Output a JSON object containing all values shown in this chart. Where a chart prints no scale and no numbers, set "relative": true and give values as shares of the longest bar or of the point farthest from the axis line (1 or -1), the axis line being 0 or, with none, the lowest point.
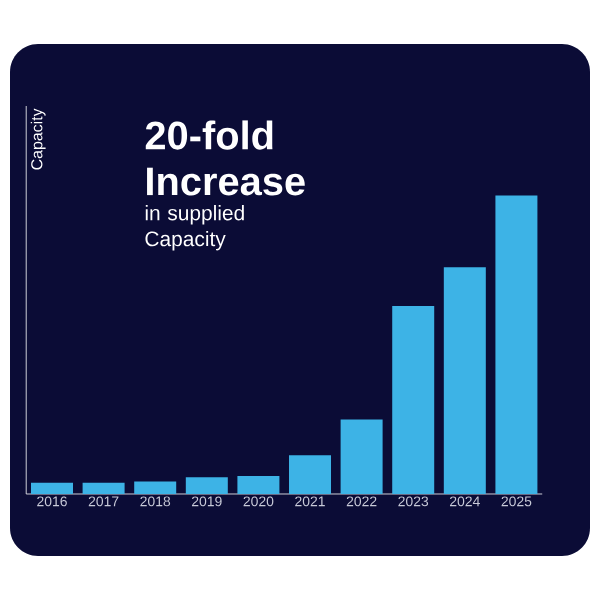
{
  "chart_data": {
    "type": "bar",
    "title": "20-fold Increase",
    "subtitle": "in supplied Capacity",
    "ylabel": "Capacity",
    "relative": true,
    "categories": [
      "2016",
      "2017",
      "2018",
      "2019",
      "2020",
      "2021",
      "2022",
      "2023",
      "2024",
      "2025"
    ],
    "values": [
      0.038,
      0.038,
      0.042,
      0.056,
      0.06,
      0.13,
      0.25,
      0.63,
      0.76,
      1
    ],
    "color": "#3db3e6"
  }
}
